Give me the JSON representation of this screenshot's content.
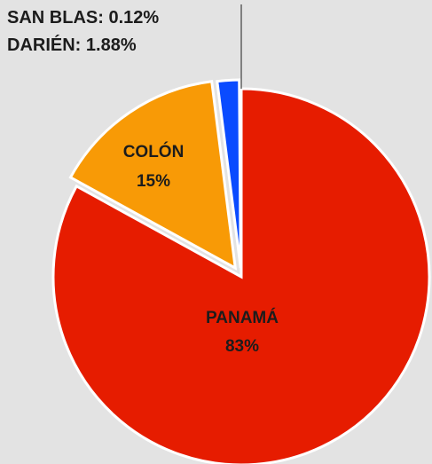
{
  "chart_data": {
    "type": "pie",
    "slices": [
      {
        "name": "SAN BLAS",
        "value": 0.12,
        "display": "0.12%",
        "color": "#1f3cff"
      },
      {
        "name": "DARIÉN",
        "value": 1.88,
        "display": "1.88%",
        "color": "#0a4bff"
      },
      {
        "name": "COLÓN",
        "value": 15,
        "display": "15%",
        "color": "#f89a06"
      },
      {
        "name": "PANAMÁ",
        "value": 83,
        "display": "83%",
        "color": "#e61c00"
      }
    ],
    "labels": {
      "san_blas": "SAN BLAS: 0.12%",
      "darien": "DARIÉN: 1.88%",
      "colon_name": "COLÓN",
      "colon_value": "15%",
      "panama_name": "PANAMÁ",
      "panama_value": "83%"
    },
    "background": "#e3e3e3"
  }
}
